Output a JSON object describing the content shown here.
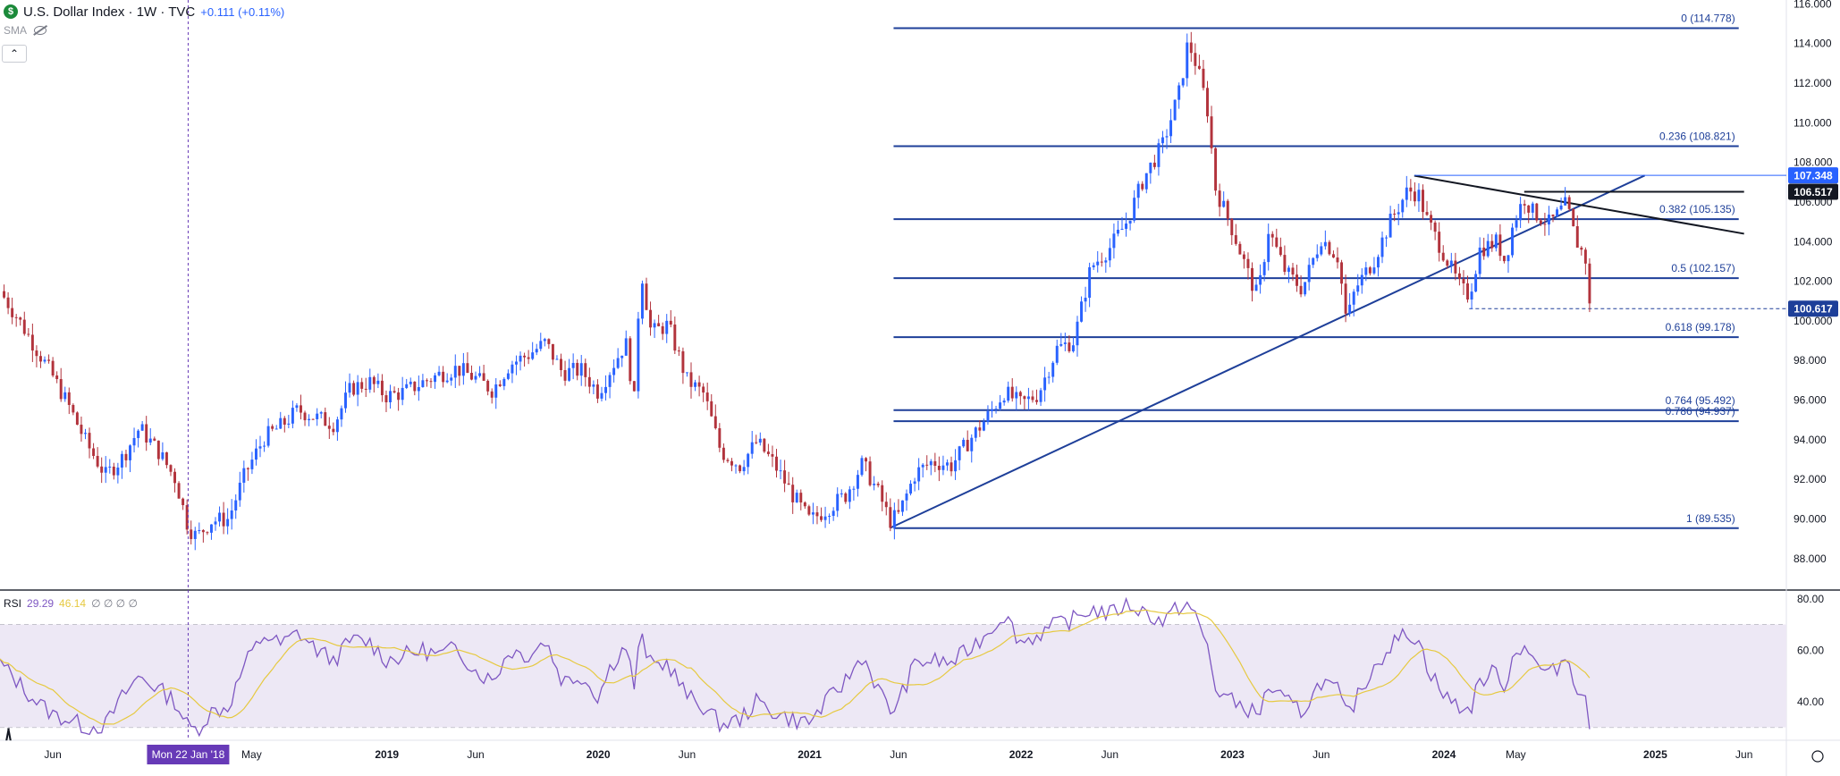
{
  "header": {
    "title": "U.S. Dollar Index · 1W · TVC",
    "change": "+0.111 (+0.11%)",
    "logo_letter": "$",
    "indicator_label": "SMA"
  },
  "rsi": {
    "label": "RSI",
    "value": "29.29",
    "ma_value": "46.14",
    "extras": "∅ ∅ ∅ ∅"
  },
  "colors": {
    "up": "#2962ff",
    "down": "#b2333c",
    "fib": "#1e3f99",
    "rsi_line": "#7e57c2",
    "rsi_ma": "#e6c940",
    "rsi_band": "#ede8f5",
    "crosshair": "#673ab7"
  },
  "chart_data": {
    "type": "candlestick",
    "y_range": [
      86.5,
      116.2
    ],
    "price_ticks": [
      "88.000",
      "90.000",
      "92.000",
      "94.000",
      "96.000",
      "98.000",
      "100.000",
      "102.000",
      "104.000",
      "106.000",
      "108.000",
      "110.000",
      "112.000",
      "114.000",
      "116.000"
    ],
    "x_labels": [
      {
        "t": 2017.42,
        "label": "Jun"
      },
      {
        "t": 2018.36,
        "label": "May"
      },
      {
        "t": 2019.0,
        "label": "2019"
      },
      {
        "t": 2019.42,
        "label": "Jun"
      },
      {
        "t": 2020.0,
        "label": "2020"
      },
      {
        "t": 2020.42,
        "label": "Jun"
      },
      {
        "t": 2021.0,
        "label": "2021"
      },
      {
        "t": 2021.42,
        "label": "Jun"
      },
      {
        "t": 2022.0,
        "label": "2022"
      },
      {
        "t": 2022.42,
        "label": "Jun"
      },
      {
        "t": 2023.0,
        "label": "2023"
      },
      {
        "t": 2023.42,
        "label": "Jun"
      },
      {
        "t": 2024.0,
        "label": "2024"
      },
      {
        "t": 2024.34,
        "label": "May"
      },
      {
        "t": 2025.0,
        "label": "2025"
      },
      {
        "t": 2025.42,
        "label": "Jun"
      }
    ],
    "crosshair": {
      "t": 2018.06,
      "label": "Mon 22 Jan '18"
    },
    "close_series": [
      [
        2017.17,
        101.5
      ],
      [
        2017.25,
        100.2
      ],
      [
        2017.33,
        98.8
      ],
      [
        2017.42,
        97.2
      ],
      [
        2017.5,
        95.6
      ],
      [
        2017.58,
        93.8
      ],
      [
        2017.67,
        92.2
      ],
      [
        2017.75,
        93.1
      ],
      [
        2017.83,
        94.6
      ],
      [
        2017.92,
        93.4
      ],
      [
        2018.0,
        92.0
      ],
      [
        2018.06,
        89.6
      ],
      [
        2018.1,
        89.1
      ],
      [
        2018.17,
        89.9
      ],
      [
        2018.25,
        90.0
      ],
      [
        2018.33,
        92.3
      ],
      [
        2018.42,
        94.1
      ],
      [
        2018.5,
        94.7
      ],
      [
        2018.58,
        95.5
      ],
      [
        2018.67,
        95.1
      ],
      [
        2018.75,
        94.8
      ],
      [
        2018.83,
        96.6
      ],
      [
        2018.92,
        96.9
      ],
      [
        2019.0,
        96.2
      ],
      [
        2019.08,
        96.4
      ],
      [
        2019.17,
        96.9
      ],
      [
        2019.25,
        97.3
      ],
      [
        2019.33,
        97.6
      ],
      [
        2019.42,
        97.1
      ],
      [
        2019.5,
        96.5
      ],
      [
        2019.58,
        97.8
      ],
      [
        2019.67,
        98.3
      ],
      [
        2019.75,
        98.9
      ],
      [
        2019.83,
        97.4
      ],
      [
        2019.92,
        97.5
      ],
      [
        2020.0,
        96.4
      ],
      [
        2020.06,
        97.6
      ],
      [
        2020.13,
        98.9
      ],
      [
        2020.17,
        96.0
      ],
      [
        2020.2,
        102.8
      ],
      [
        2020.25,
        99.4
      ],
      [
        2020.33,
        99.8
      ],
      [
        2020.42,
        97.0
      ],
      [
        2020.5,
        96.3
      ],
      [
        2020.58,
        93.4
      ],
      [
        2020.67,
        92.7
      ],
      [
        2020.75,
        93.9
      ],
      [
        2020.83,
        92.8
      ],
      [
        2020.92,
        91.2
      ],
      [
        2021.0,
        89.9
      ],
      [
        2021.08,
        90.5
      ],
      [
        2021.17,
        91.2
      ],
      [
        2021.25,
        92.8
      ],
      [
        2021.33,
        91.2
      ],
      [
        2021.38,
        89.9
      ],
      [
        2021.42,
        90.2
      ],
      [
        2021.5,
        92.3
      ],
      [
        2021.58,
        92.9
      ],
      [
        2021.67,
        92.7
      ],
      [
        2021.75,
        93.9
      ],
      [
        2021.83,
        95.0
      ],
      [
        2021.92,
        96.4
      ],
      [
        2022.0,
        95.8
      ],
      [
        2022.08,
        96.3
      ],
      [
        2022.17,
        98.6
      ],
      [
        2022.25,
        99.0
      ],
      [
        2022.33,
        102.7
      ],
      [
        2022.42,
        103.7
      ],
      [
        2022.5,
        105.0
      ],
      [
        2022.58,
        107.2
      ],
      [
        2022.67,
        108.9
      ],
      [
        2022.75,
        111.6
      ],
      [
        2022.79,
        114.1
      ],
      [
        2022.83,
        112.9
      ],
      [
        2022.88,
        110.8
      ],
      [
        2022.92,
        106.7
      ],
      [
        2023.0,
        104.6
      ],
      [
        2023.08,
        102.2
      ],
      [
        2023.12,
        101.2
      ],
      [
        2023.17,
        104.6
      ],
      [
        2023.25,
        102.5
      ],
      [
        2023.33,
        101.6
      ],
      [
        2023.42,
        104.2
      ],
      [
        2023.5,
        103.2
      ],
      [
        2023.54,
        99.9
      ],
      [
        2023.58,
        101.6
      ],
      [
        2023.67,
        103.1
      ],
      [
        2023.75,
        105.1
      ],
      [
        2023.83,
        106.6
      ],
      [
        2023.88,
        106.4
      ],
      [
        2023.92,
        105.1
      ],
      [
        2024.0,
        103.4
      ],
      [
        2024.08,
        101.6
      ],
      [
        2024.12,
        101.3
      ],
      [
        2024.17,
        103.6
      ],
      [
        2024.25,
        104.0
      ],
      [
        2024.29,
        103.0
      ],
      [
        2024.33,
        105.0
      ],
      [
        2024.38,
        106.2
      ],
      [
        2024.42,
        105.5
      ],
      [
        2024.5,
        104.9
      ],
      [
        2024.58,
        105.9
      ],
      [
        2024.62,
        104.2
      ],
      [
        2024.67,
        103.1
      ],
      [
        2024.69,
        100.6
      ]
    ],
    "fib_levels": [
      {
        "ratio": "0",
        "value": 114.778,
        "label": "0 (114.778)"
      },
      {
        "ratio": "0.236",
        "value": 108.821,
        "label": "0.236 (108.821)"
      },
      {
        "ratio": "0.382",
        "value": 105.135,
        "label": "0.382 (105.135)"
      },
      {
        "ratio": "0.5",
        "value": 102.157,
        "label": "0.5 (102.157)"
      },
      {
        "ratio": "0.618",
        "value": 99.178,
        "label": "0.618 (99.178)"
      },
      {
        "ratio": "0.764",
        "value": 95.492,
        "label": "0.764 (95.492)"
      },
      {
        "ratio": "0.786",
        "value": 94.937,
        "label": "0.786 (94.937)"
      },
      {
        "ratio": "1",
        "value": 89.535,
        "label": "1 (89.535)"
      }
    ],
    "price_badges": [
      {
        "value": 107.348,
        "label": "107.348",
        "bg": "#2962ff"
      },
      {
        "value": 106.517,
        "label": "106.517",
        "bg": "#131722"
      },
      {
        "value": 100.617,
        "label": "100.617",
        "bg": "#1e3f99"
      }
    ],
    "trendlines": [
      {
        "from": [
          2021.38,
          89.54
        ],
        "to": [
          2024.95,
          107.34
        ],
        "color": "#1e3f99"
      },
      {
        "from": [
          2023.86,
          107.33
        ],
        "to": [
          2025.42,
          104.4
        ],
        "color": "#131722"
      },
      {
        "from": [
          2024.38,
          106.52
        ],
        "to": [
          2025.42,
          106.52
        ],
        "color": "#131722"
      }
    ],
    "rsi_y_range": [
      25,
      82
    ],
    "rsi_ticks": [
      "40.00",
      "60.00",
      "80.00"
    ],
    "rsi_levels": [
      30,
      50,
      70
    ],
    "rsi_series": [
      [
        2017.17,
        55
      ],
      [
        2017.25,
        48
      ],
      [
        2017.33,
        41
      ],
      [
        2017.42,
        35
      ],
      [
        2017.5,
        33
      ],
      [
        2017.58,
        30
      ],
      [
        2017.67,
        31
      ],
      [
        2017.75,
        42
      ],
      [
        2017.83,
        50
      ],
      [
        2017.92,
        45
      ],
      [
        2018.0,
        40
      ],
      [
        2018.06,
        30
      ],
      [
        2018.1,
        29
      ],
      [
        2018.17,
        36
      ],
      [
        2018.25,
        38
      ],
      [
        2018.33,
        55
      ],
      [
        2018.42,
        66
      ],
      [
        2018.5,
        62
      ],
      [
        2018.58,
        67
      ],
      [
        2018.67,
        60
      ],
      [
        2018.75,
        56
      ],
      [
        2018.83,
        64
      ],
      [
        2018.92,
        63
      ],
      [
        2019.0,
        56
      ],
      [
        2019.08,
        58
      ],
      [
        2019.17,
        60
      ],
      [
        2019.25,
        58
      ],
      [
        2019.33,
        61
      ],
      [
        2019.42,
        52
      ],
      [
        2019.5,
        48
      ],
      [
        2019.58,
        60
      ],
      [
        2019.67,
        58
      ],
      [
        2019.75,
        64
      ],
      [
        2019.83,
        48
      ],
      [
        2019.92,
        50
      ],
      [
        2020.0,
        42
      ],
      [
        2020.06,
        54
      ],
      [
        2020.13,
        62
      ],
      [
        2020.17,
        46
      ],
      [
        2020.2,
        66
      ],
      [
        2020.25,
        54
      ],
      [
        2020.33,
        55
      ],
      [
        2020.42,
        42
      ],
      [
        2020.5,
        38
      ],
      [
        2020.58,
        31
      ],
      [
        2020.67,
        33
      ],
      [
        2020.75,
        40
      ],
      [
        2020.83,
        36
      ],
      [
        2020.92,
        33
      ],
      [
        2021.0,
        32
      ],
      [
        2021.08,
        40
      ],
      [
        2021.17,
        48
      ],
      [
        2021.25,
        58
      ],
      [
        2021.33,
        44
      ],
      [
        2021.38,
        36
      ],
      [
        2021.42,
        40
      ],
      [
        2021.5,
        55
      ],
      [
        2021.58,
        56
      ],
      [
        2021.67,
        55
      ],
      [
        2021.75,
        60
      ],
      [
        2021.83,
        66
      ],
      [
        2021.92,
        74
      ],
      [
        2022.0,
        63
      ],
      [
        2022.08,
        66
      ],
      [
        2022.17,
        70
      ],
      [
        2022.25,
        72
      ],
      [
        2022.33,
        76
      ],
      [
        2022.42,
        74
      ],
      [
        2022.5,
        78
      ],
      [
        2022.58,
        75
      ],
      [
        2022.67,
        71
      ],
      [
        2022.75,
        77
      ],
      [
        2022.79,
        78
      ],
      [
        2022.83,
        72
      ],
      [
        2022.88,
        62
      ],
      [
        2022.92,
        45
      ],
      [
        2023.0,
        40
      ],
      [
        2023.08,
        37
      ],
      [
        2023.12,
        34
      ],
      [
        2023.17,
        46
      ],
      [
        2023.25,
        40
      ],
      [
        2023.33,
        36
      ],
      [
        2023.42,
        48
      ],
      [
        2023.5,
        44
      ],
      [
        2023.54,
        34
      ],
      [
        2023.58,
        40
      ],
      [
        2023.67,
        54
      ],
      [
        2023.75,
        62
      ],
      [
        2023.83,
        67
      ],
      [
        2023.88,
        64
      ],
      [
        2023.92,
        54
      ],
      [
        2024.0,
        42
      ],
      [
        2024.08,
        38
      ],
      [
        2024.12,
        36
      ],
      [
        2024.17,
        48
      ],
      [
        2024.25,
        52
      ],
      [
        2024.29,
        46
      ],
      [
        2024.33,
        58
      ],
      [
        2024.38,
        63
      ],
      [
        2024.42,
        56
      ],
      [
        2024.5,
        50
      ],
      [
        2024.58,
        58
      ],
      [
        2024.62,
        48
      ],
      [
        2024.67,
        40
      ],
      [
        2024.69,
        29.3
      ]
    ]
  }
}
